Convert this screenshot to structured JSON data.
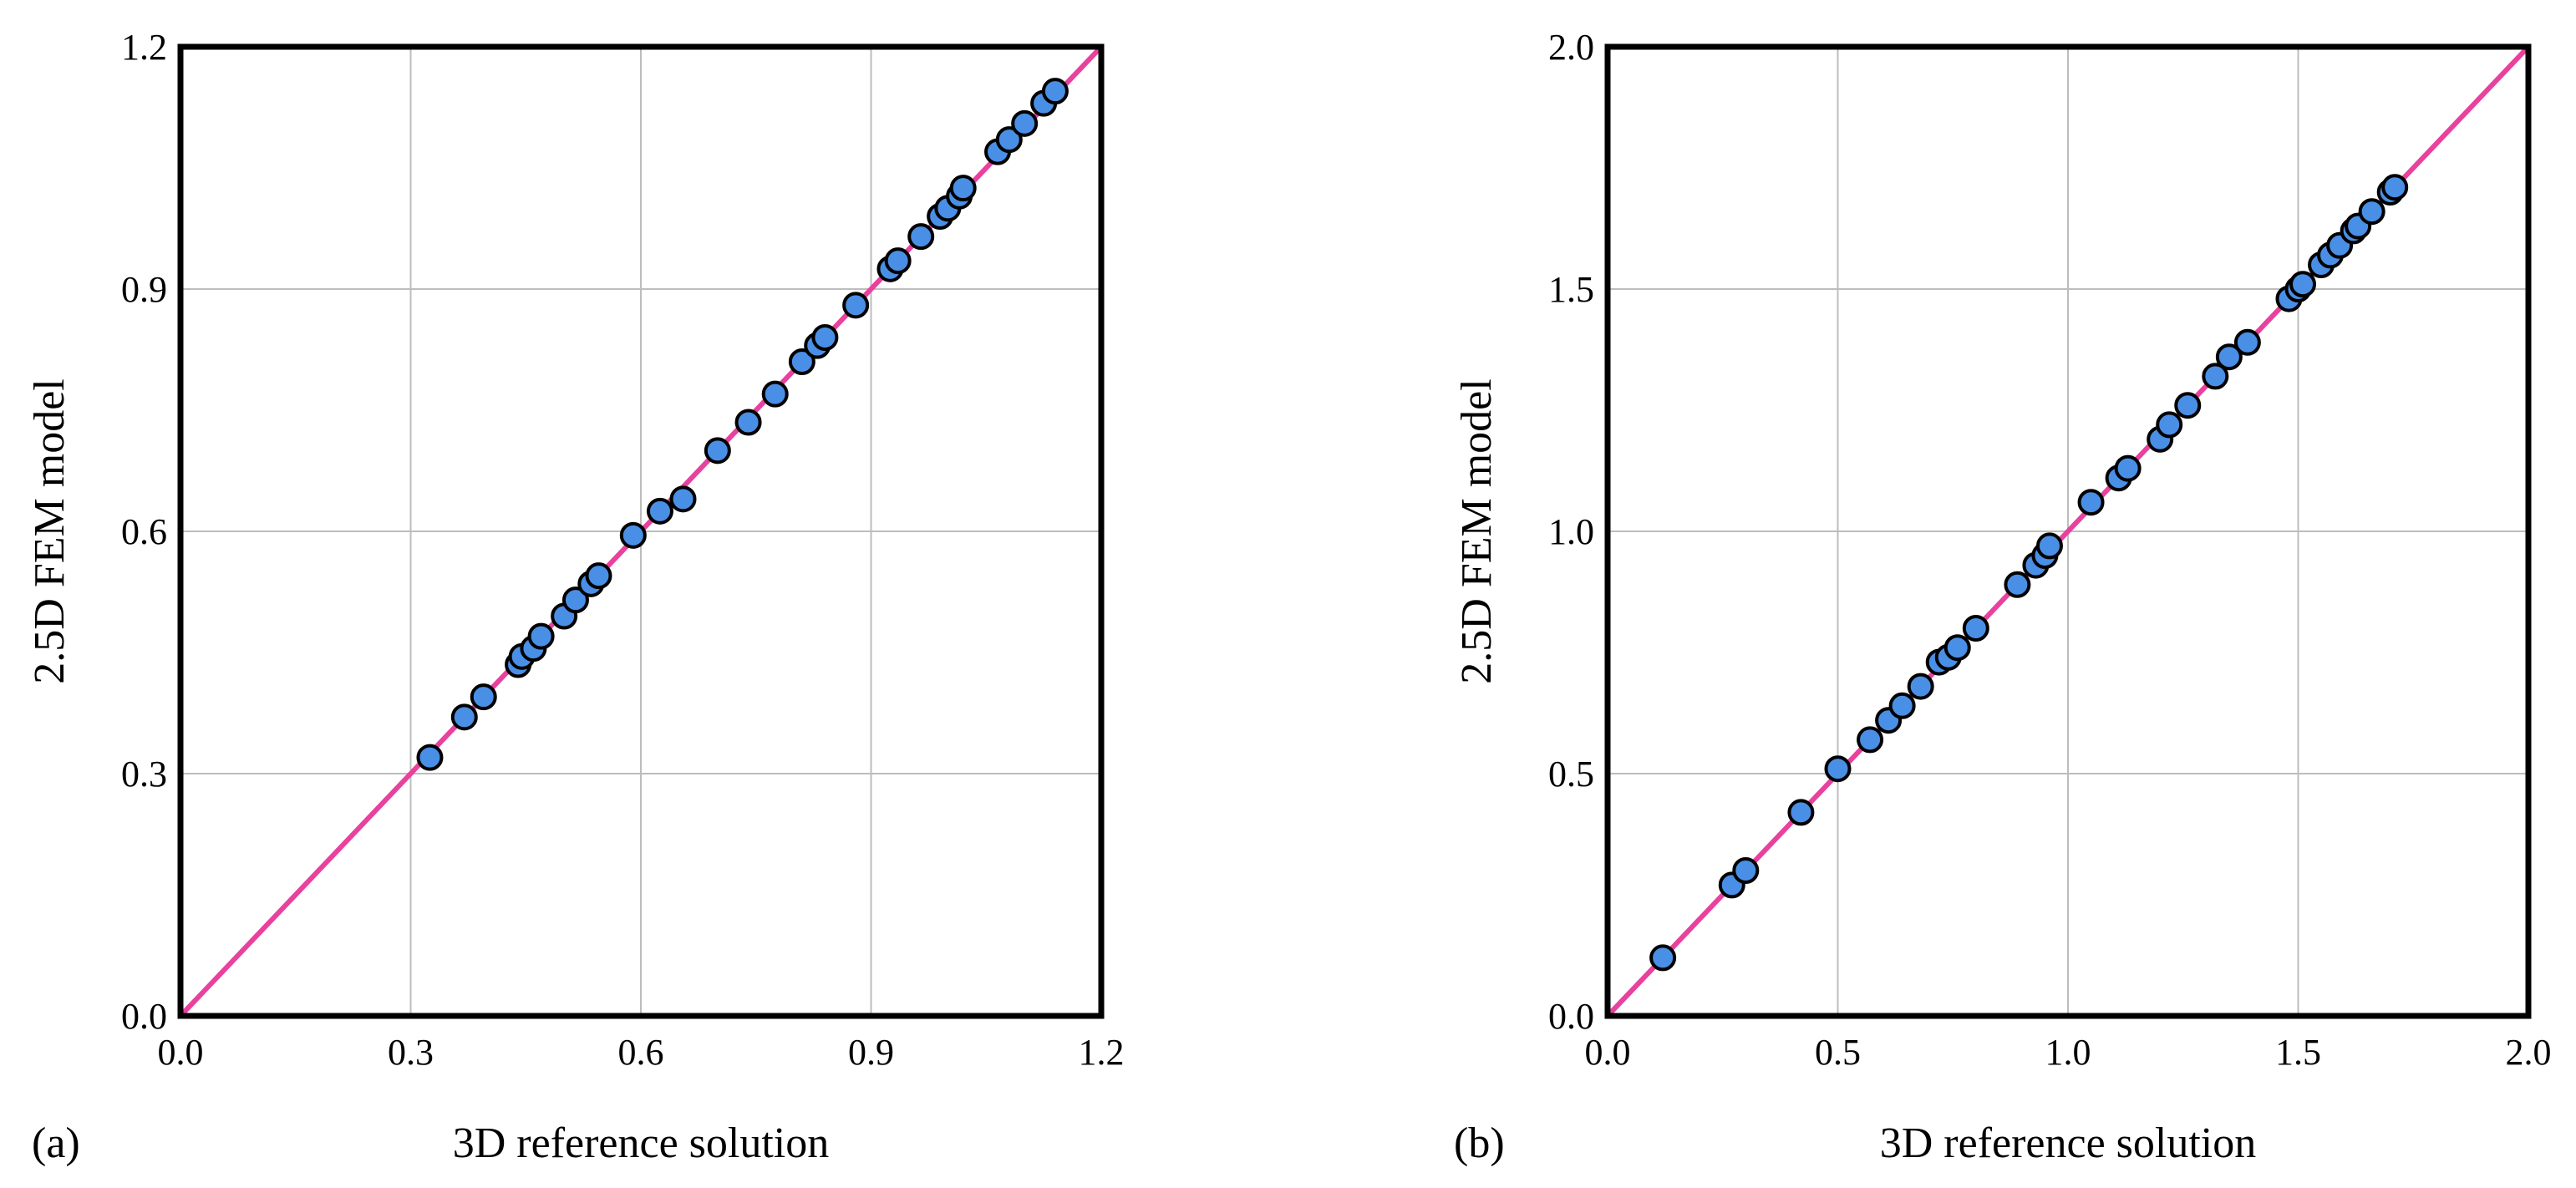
{
  "colors": {
    "identity_line": "#e8419e",
    "marker_fill": "#4a8fe6",
    "marker_edge": "#000000",
    "grid": "#bdbdbd",
    "frame": "#000000"
  },
  "chart_data": [
    {
      "type": "scatter",
      "panel_label": "(a)",
      "title": "",
      "xlabel": "3D reference solution",
      "ylabel": "2.5D FEM model",
      "xlim": [
        0.0,
        1.2
      ],
      "ylim": [
        0.0,
        1.2
      ],
      "xticks": [
        0.0,
        0.3,
        0.6,
        0.9,
        1.2
      ],
      "yticks": [
        0.0,
        0.3,
        0.6,
        0.9,
        1.2
      ],
      "xtick_labels": [
        "0.0",
        "0.3",
        "0.6",
        "0.9",
        "1.2"
      ],
      "ytick_labels": [
        "0.0",
        "0.3",
        "0.6",
        "0.9",
        "1.2"
      ],
      "grid": true,
      "identity_line": [
        [
          0.0,
          0.0
        ],
        [
          1.2,
          1.2
        ]
      ],
      "series": [
        {
          "name": "points",
          "x": [
            0.325,
            0.37,
            0.395,
            0.44,
            0.445,
            0.46,
            0.47,
            0.5,
            0.515,
            0.535,
            0.545,
            0.59,
            0.625,
            0.655,
            0.7,
            0.74,
            0.775,
            0.81,
            0.83,
            0.84,
            0.88,
            0.925,
            0.935,
            0.965,
            0.99,
            1.0,
            1.015,
            1.02,
            1.065,
            1.08,
            1.1,
            1.125,
            1.14
          ],
          "y": [
            0.32,
            0.37,
            0.395,
            0.435,
            0.445,
            0.455,
            0.47,
            0.495,
            0.515,
            0.535,
            0.545,
            0.595,
            0.625,
            0.64,
            0.7,
            0.735,
            0.77,
            0.81,
            0.83,
            0.84,
            0.88,
            0.925,
            0.935,
            0.965,
            0.99,
            1.0,
            1.015,
            1.025,
            1.07,
            1.085,
            1.105,
            1.13,
            1.145
          ]
        }
      ]
    },
    {
      "type": "scatter",
      "panel_label": "(b)",
      "title": "",
      "xlabel": "3D reference solution",
      "ylabel": "2.5D FEM model",
      "xlim": [
        0.0,
        2.0
      ],
      "ylim": [
        0.0,
        2.0
      ],
      "xticks": [
        0.0,
        0.5,
        1.0,
        1.5,
        2.0
      ],
      "yticks": [
        0.0,
        0.5,
        1.0,
        1.5,
        2.0
      ],
      "xtick_labels": [
        "0.0",
        "0.5",
        "1.0",
        "1.5",
        "2.0"
      ],
      "ytick_labels": [
        "0.0",
        "0.5",
        "1.0",
        "1.5",
        "2.0"
      ],
      "grid": true,
      "identity_line": [
        [
          0.0,
          0.0
        ],
        [
          2.0,
          2.0
        ]
      ],
      "series": [
        {
          "name": "points",
          "x": [
            0.12,
            0.27,
            0.3,
            0.42,
            0.5,
            0.57,
            0.61,
            0.64,
            0.68,
            0.72,
            0.74,
            0.76,
            0.8,
            0.89,
            0.93,
            0.95,
            0.96,
            1.05,
            1.11,
            1.13,
            1.2,
            1.22,
            1.26,
            1.32,
            1.35,
            1.39,
            1.48,
            1.5,
            1.51,
            1.55,
            1.57,
            1.59,
            1.62,
            1.63,
            1.66,
            1.7,
            1.71
          ],
          "y": [
            0.12,
            0.27,
            0.3,
            0.42,
            0.51,
            0.57,
            0.61,
            0.64,
            0.68,
            0.73,
            0.74,
            0.76,
            0.8,
            0.89,
            0.93,
            0.95,
            0.97,
            1.06,
            1.11,
            1.13,
            1.19,
            1.22,
            1.26,
            1.32,
            1.36,
            1.39,
            1.48,
            1.5,
            1.51,
            1.55,
            1.57,
            1.59,
            1.62,
            1.63,
            1.66,
            1.7,
            1.71
          ]
        }
      ]
    }
  ]
}
